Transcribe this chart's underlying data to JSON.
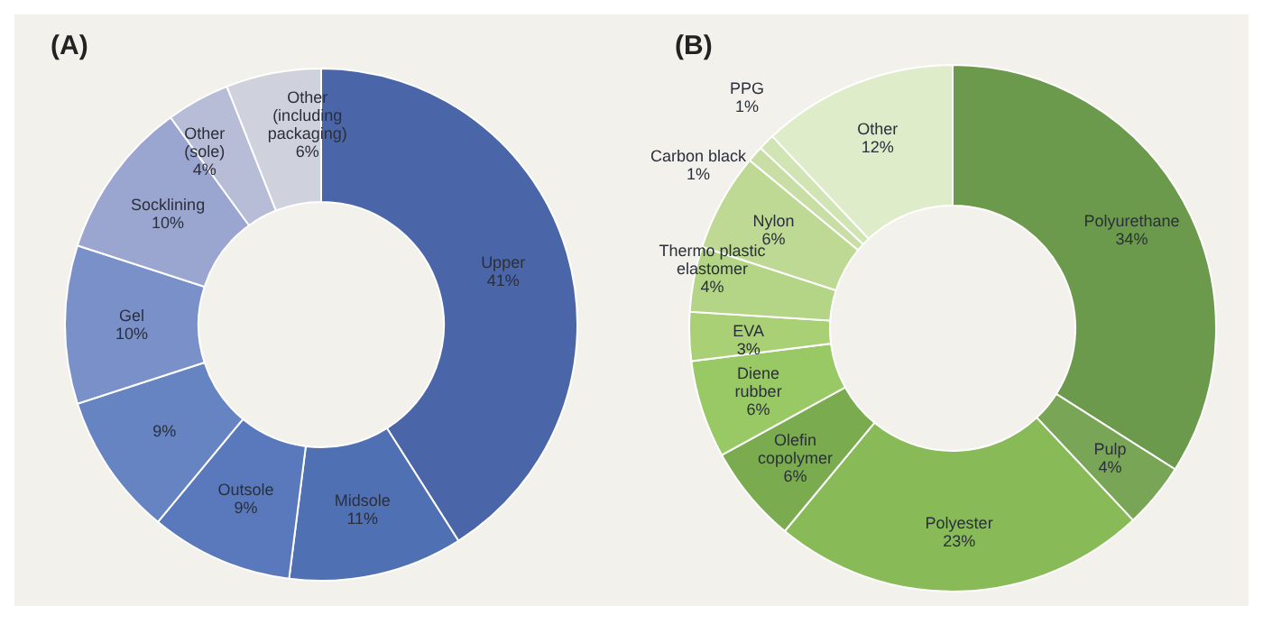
{
  "chart_data": [
    {
      "type": "donut",
      "title": "(A)",
      "categories": [
        "Upper",
        "Midsole",
        "Outsole",
        null,
        "Gel",
        "Socklining",
        "Other (sole)",
        "Other (including packaging)"
      ],
      "values": [
        41,
        11,
        9,
        9,
        10,
        10,
        4,
        6
      ],
      "value_labels": [
        "41%",
        "11%",
        "9%",
        "9%",
        "10%",
        "10%",
        "4%",
        "6%"
      ],
      "colors": [
        "#4a66a9",
        "#5070b4",
        "#5a79bc",
        "#6683c2",
        "#7990c9",
        "#9aa6cf",
        "#b7bdd6",
        "#cfd2dc"
      ],
      "legend": false
    },
    {
      "type": "donut",
      "title": "(B)",
      "categories": [
        "Polyurethane",
        "Pulp",
        "Polyester",
        "Olefin copolymer",
        "Diene rubber",
        "EVA",
        "Thermo plastic elastomer",
        "Nylon",
        "Carbon black",
        "PPG",
        "Other"
      ],
      "values": [
        34,
        4,
        23,
        6,
        6,
        3,
        4,
        6,
        1,
        1,
        12
      ],
      "value_labels": [
        "34%",
        "4%",
        "23%",
        "6%",
        "6%",
        "3%",
        "4%",
        "6%",
        "1%",
        "1%",
        "12%"
      ],
      "colors": [
        "#6c9a4c",
        "#79a656",
        "#88bb58",
        "#7aab4e",
        "#99c965",
        "#a9d075",
        "#b3d585",
        "#bed994",
        "#c8dea4",
        "#d1e4b4",
        "#dfecca"
      ],
      "legend": false
    }
  ]
}
